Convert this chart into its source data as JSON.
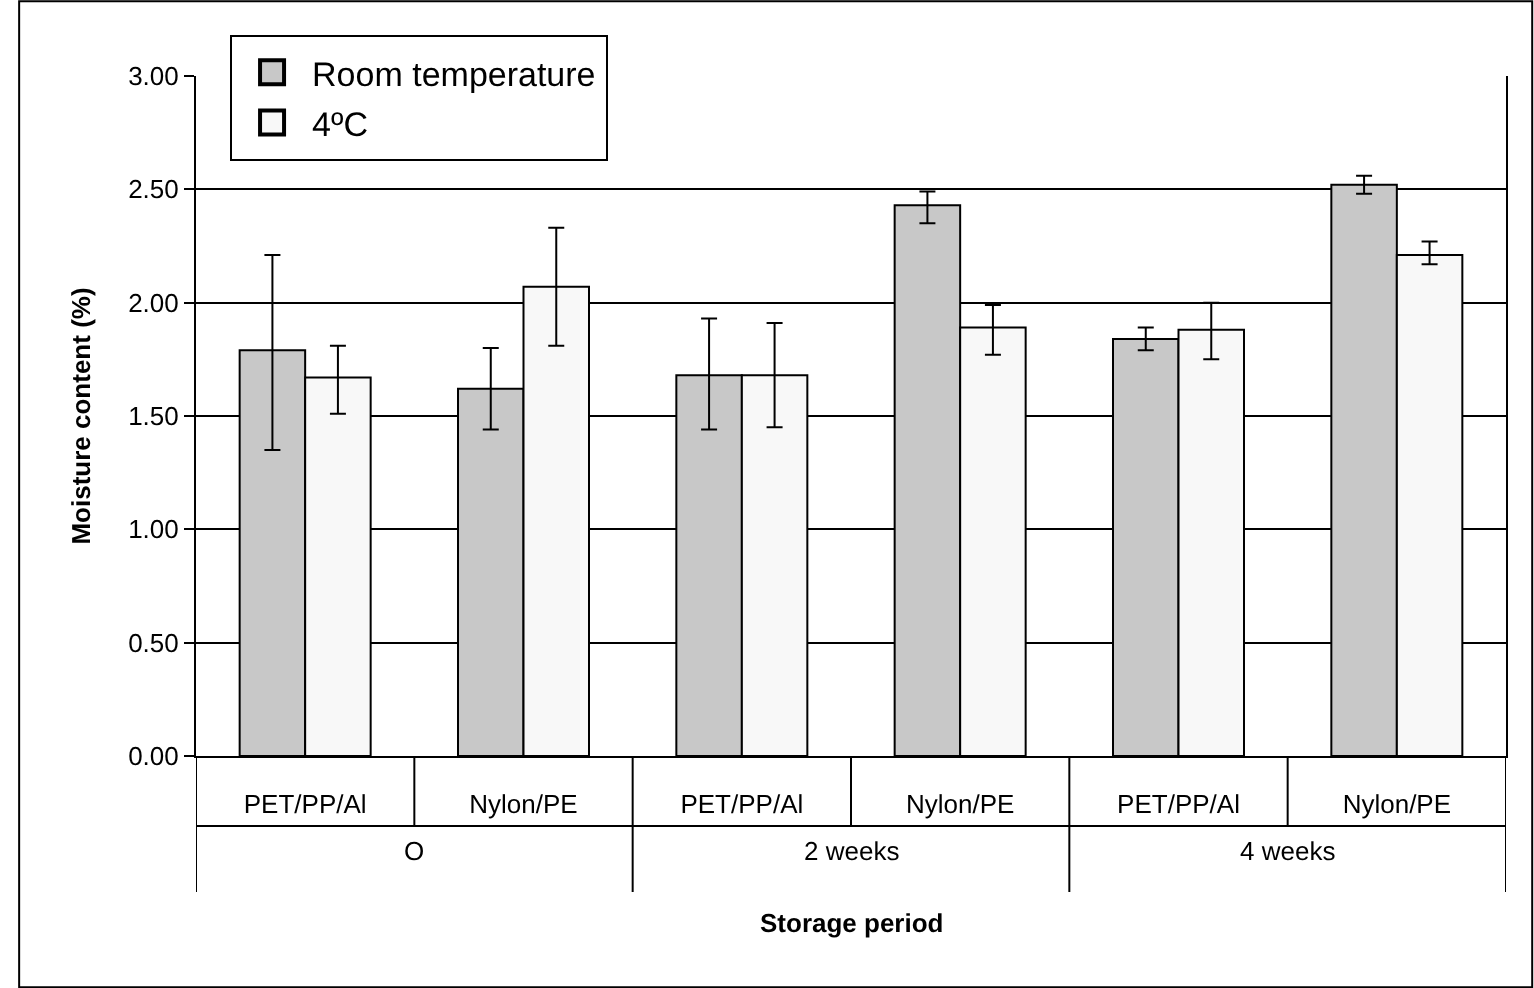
{
  "chart_data": {
    "type": "bar",
    "xlabel": "Storage period",
    "ylabel": "Moisture content (%)",
    "categories": [
      "PET/PP/Al",
      "Nylon/PE",
      "PET/PP/Al",
      "Nylon/PE",
      "PET/PP/Al",
      "Nylon/PE"
    ],
    "annotations": [
      "O",
      "2 weeks",
      "4 weeks"
    ],
    "series": [
      {
        "name": "Room temperature",
        "color": "#c8c8c8",
        "values": [
          1.79,
          1.62,
          1.68,
          2.43,
          1.84,
          2.52
        ],
        "errors": [
          [
            1.35,
            2.21
          ],
          [
            1.44,
            1.8
          ],
          [
            1.44,
            1.93
          ],
          [
            2.35,
            2.49
          ],
          [
            1.79,
            1.89
          ],
          [
            2.48,
            2.56
          ]
        ]
      },
      {
        "name": "4ºC",
        "color": "#f8f8f8",
        "values": [
          1.67,
          2.07,
          1.68,
          1.89,
          1.88,
          2.21
        ],
        "errors": [
          [
            1.51,
            1.81
          ],
          [
            1.81,
            2.33
          ],
          [
            1.45,
            1.91
          ],
          [
            1.77,
            1.99
          ],
          [
            1.75,
            2.0
          ],
          [
            2.17,
            2.27
          ]
        ]
      }
    ],
    "ylim": [
      0,
      3
    ],
    "yticks": [
      {
        "value": 0,
        "label": "0.00"
      },
      {
        "value": 0.5,
        "label": "0.50"
      },
      {
        "value": 1,
        "label": "1.00"
      },
      {
        "value": 1.5,
        "label": "1.50"
      },
      {
        "value": 2,
        "label": "2.00"
      },
      {
        "value": 2.5,
        "label": "2.50"
      },
      {
        "value": 3,
        "label": "3.00"
      }
    ],
    "grid": "y",
    "legend": "top left"
  }
}
